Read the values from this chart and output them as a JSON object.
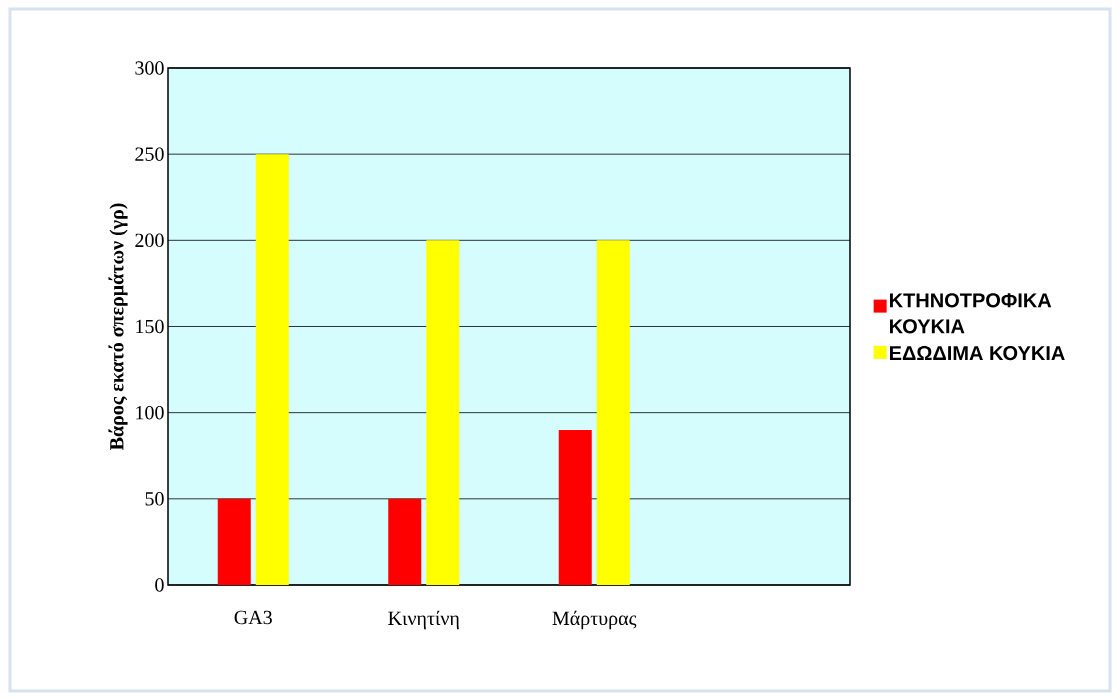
{
  "chart_data": {
    "type": "bar",
    "ylabel": "Βάρος εκατό σπερμάτων (γρ)",
    "categories": [
      "GA3",
      "Κινητίνη",
      "Μάρτυρας",
      null
    ],
    "series": [
      {
        "name": "ΚΤΗΝΟΤΡΟΦΙΚΑ ΚΟΥΚΙΑ",
        "color": "#ff0000",
        "values": [
          50,
          50,
          90,
          null
        ]
      },
      {
        "name": "ΕΔΩΔΙΜΑ ΚΟΥΚΙΑ",
        "color": "#ffff00",
        "values": [
          250,
          200,
          200,
          null
        ]
      }
    ],
    "ylim": [
      0,
      300
    ],
    "yticks": [
      0,
      50,
      100,
      150,
      200,
      250,
      300
    ],
    "grid": "y",
    "legend": "right"
  }
}
